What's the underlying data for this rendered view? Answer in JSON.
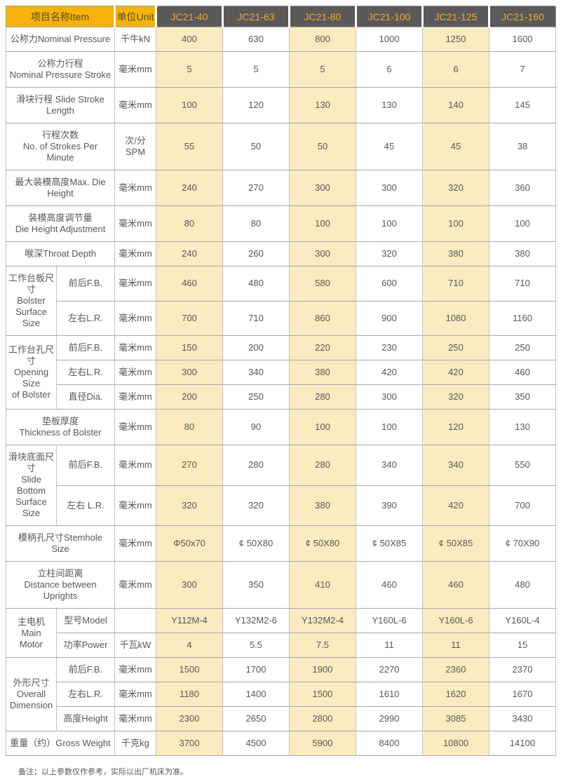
{
  "header": {
    "item": "项目名称Item",
    "unit": "单位Unit",
    "models": [
      "JC21-40",
      "JC21-63",
      "JC21-80",
      "JC21-100",
      "JC21-125",
      "JC21-160"
    ]
  },
  "colors": {
    "header_yellow": "#F5B30D",
    "header_dark_gray": "#5B5859",
    "header_model_text_gold": "#EDAD27",
    "stripe_cream": "#FBEBC1",
    "body_text": "#595757"
  },
  "rows": [
    {
      "item": "公称力Nominal Pressure",
      "unit": "千牛kN",
      "values": [
        "400",
        "630",
        "800",
        "1000",
        "1250",
        "1600"
      ]
    },
    {
      "item": "公称力行程\nNominal Pressure Stroke",
      "unit": "毫米mm",
      "values": [
        "5",
        "5",
        "5",
        "6",
        "6",
        "7"
      ]
    },
    {
      "item": "滑块行程 Slide Stroke Length",
      "unit": "毫米mm",
      "values": [
        "100",
        "120",
        "130",
        "130",
        "140",
        "145"
      ]
    },
    {
      "item": "行程次数\nNo. of Strokes Per  Minute",
      "unit": "次/分 SPM",
      "values": [
        "55",
        "50",
        "50",
        "45",
        "45",
        "38"
      ]
    },
    {
      "item": "最大装模高度Max. Die Height",
      "unit": "毫米mm",
      "values": [
        "240",
        "270",
        "300",
        "300",
        "320",
        "360"
      ]
    },
    {
      "item": "装模高度调节量\nDie Height Adjustment",
      "unit": "毫米mm",
      "values": [
        "80",
        "80",
        "100",
        "100",
        "100",
        "100"
      ]
    },
    {
      "item": "喉深Throat Depth",
      "unit": "毫米mm",
      "values": [
        "240",
        "260",
        "300",
        "320",
        "380",
        "380"
      ]
    },
    {
      "group": "工作台板尺寸\nBolster\nSurface Size",
      "group_span": 2,
      "sub": true,
      "item": "前后F.B.",
      "unit": "毫米mm",
      "values": [
        "460",
        "480",
        "580",
        "600",
        "710",
        "710"
      ]
    },
    {
      "sub": true,
      "item": "左右L.R.",
      "unit": "毫米mm",
      "values": [
        "700",
        "710",
        "860",
        "900",
        "1080",
        "1160"
      ]
    },
    {
      "group": "工作台孔尺寸\nOpening Size\nof Bolster",
      "group_span": 3,
      "sub": true,
      "item": "前后F.B.",
      "unit": "毫米mm",
      "values": [
        "150",
        "200",
        "220",
        "230",
        "250",
        "250"
      ]
    },
    {
      "sub": true,
      "item": "左右L.R.",
      "unit": "毫米mm",
      "values": [
        "300",
        "340",
        "380",
        "420",
        "420",
        "460"
      ]
    },
    {
      "sub": true,
      "item": "直径Dia.",
      "unit": "毫米mm",
      "values": [
        "200",
        "250",
        "280",
        "300",
        "320",
        "350"
      ]
    },
    {
      "item": "垫板厚度\nThickness of Bolster",
      "unit": "毫米mm",
      "values": [
        "80",
        "90",
        "100",
        "100",
        "120",
        "130"
      ]
    },
    {
      "group": "滑块底面尺寸\nSlide  Bottom\nSurface\nSize",
      "group_span": 2,
      "sub": true,
      "item": "前后F.B.",
      "unit": "毫米mm",
      "values": [
        "270",
        "280",
        "280",
        "340",
        "340",
        "550"
      ]
    },
    {
      "sub": true,
      "item": "左右 L.R.",
      "unit": "毫米mm",
      "values": [
        "320",
        "320",
        "380",
        "390",
        "420",
        "700"
      ]
    },
    {
      "item": "模柄孔尺寸Stemhole Size",
      "unit": "毫米mm",
      "values": [
        "Φ50x70",
        "¢ 50X80",
        "¢ 50X80",
        "¢ 50X85",
        "¢ 50X85",
        "¢ 70X90"
      ]
    },
    {
      "item": "立柱间距离\nDistance between Uprights",
      "unit": "毫米mm",
      "values": [
        "300",
        "350",
        "410",
        "460",
        "460",
        "480"
      ]
    },
    {
      "group": "主电机Main\nMotor",
      "group_span": 2,
      "sub": true,
      "item": "型号Model",
      "unit": "",
      "values": [
        "Y112M-4",
        "Y132M2-6",
        "Y132M2-4",
        "Y160L-6",
        "Y160L-6",
        "Y160L-4"
      ]
    },
    {
      "sub": true,
      "item": "功率Power",
      "unit": "千瓦kW",
      "values": [
        "4",
        "5.5",
        "7.5",
        "11",
        "11",
        "15"
      ]
    },
    {
      "group": "外形尺寸\nOverall\nDimension",
      "group_span": 3,
      "sub": true,
      "item": "前后F.B.",
      "unit": "毫米mm",
      "values": [
        "1500",
        "1700",
        "1900",
        "2270",
        "2360",
        "2370"
      ]
    },
    {
      "sub": true,
      "item": "左右L.R.",
      "unit": "毫米mm",
      "values": [
        "1180",
        "1400",
        "1500",
        "1610",
        "1620",
        "1670"
      ]
    },
    {
      "sub": true,
      "item": "高度Height",
      "unit": "毫米mm",
      "values": [
        "2300",
        "2650",
        "2800",
        "2990",
        "3085",
        "3430"
      ]
    },
    {
      "item": "重量（约）Gross Weight",
      "unit": "千克kg",
      "values": [
        "3700",
        "4500",
        "5900",
        "8400",
        "10800",
        "14100"
      ]
    }
  ],
  "footnote": "备注；以上参数仅作参考，实际以出厂机床为准。"
}
